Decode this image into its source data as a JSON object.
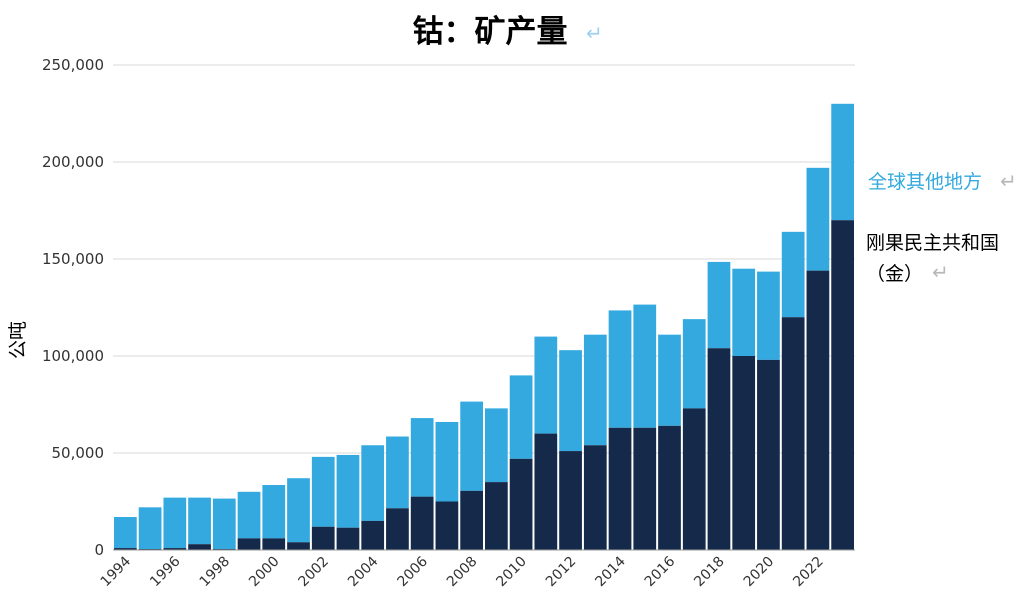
{
  "chart_data": {
    "type": "bar",
    "stacked": true,
    "title": "钴：矿产量",
    "ylabel": "公吨",
    "xlabel": "",
    "ylim": [
      0,
      250000
    ],
    "yticks": [
      "0",
      "50,000",
      "100,000",
      "150,000",
      "200,000",
      "250,000"
    ],
    "yticks_values": [
      0,
      50000,
      100000,
      150000,
      200000,
      250000
    ],
    "xtick_labels": [
      "1994",
      "1996",
      "1998",
      "2000",
      "2002",
      "2004",
      "2006",
      "2008",
      "2010",
      "2012",
      "2014",
      "2016",
      "2018",
      "2020",
      "2022"
    ],
    "categories": [
      "1994",
      "1995",
      "1996",
      "1997",
      "1998",
      "1999",
      "2000",
      "2001",
      "2002",
      "2003",
      "2004",
      "2005",
      "2006",
      "2007",
      "2008",
      "2009",
      "2010",
      "2011",
      "2012",
      "2013",
      "2014",
      "2015",
      "2016",
      "2017",
      "2018",
      "2019",
      "2020",
      "2021",
      "2022",
      "2023"
    ],
    "series": [
      {
        "name": "刚果民主共和国（金）",
        "color": "#152a4a",
        "values": [
          1000,
          500,
          1000,
          3000,
          500,
          6000,
          6000,
          4000,
          12000,
          11500,
          15000,
          21500,
          27500,
          25000,
          30500,
          35000,
          47000,
          60000,
          51000,
          54000,
          63000,
          63000,
          64000,
          73000,
          104000,
          100000,
          98000,
          120000,
          144000,
          170000
        ]
      },
      {
        "name": "全球其他地方",
        "color": "#33a9df",
        "values": [
          16000,
          21500,
          26000,
          24000,
          26000,
          24000,
          27500,
          33000,
          36000,
          37500,
          39000,
          37000,
          40500,
          41000,
          46000,
          38000,
          43000,
          50000,
          52000,
          57000,
          60500,
          63500,
          47000,
          46000,
          44500,
          45000,
          45500,
          44000,
          53000,
          60000
        ]
      }
    ],
    "legend": {
      "placement": "right",
      "entries": [
        {
          "text": "全球其他地方",
          "color": "#33a9df"
        },
        {
          "text_line1": "刚果民主共和国",
          "text_line2": "（金）",
          "color": "#000000"
        }
      ]
    },
    "grid": true,
    "return_mark": "↵"
  }
}
